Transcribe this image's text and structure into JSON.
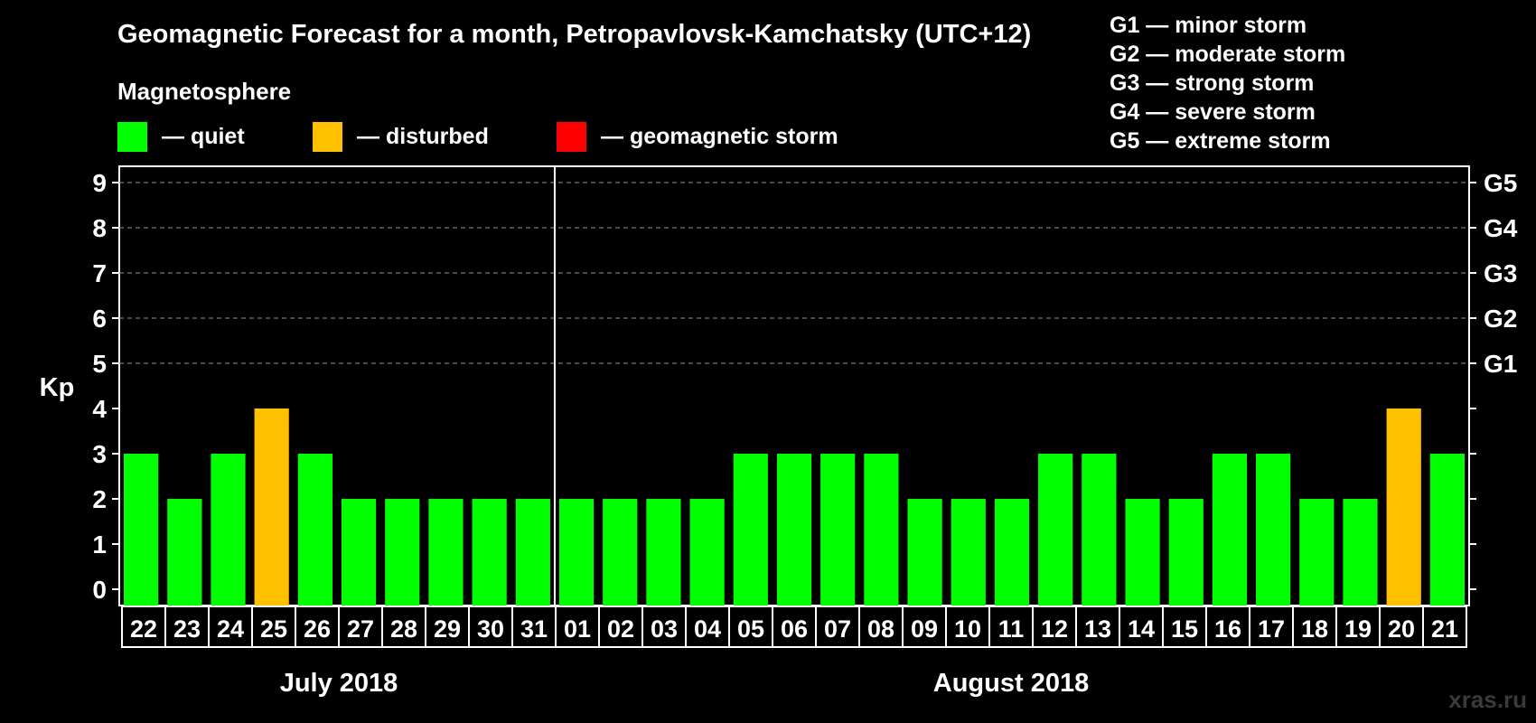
{
  "title": "Geomagnetic Forecast for a month, Petropavlovsk-Kamchatsky (UTC+12)",
  "legend": {
    "title": "Magnetosphere",
    "items": [
      {
        "label": "— quiet",
        "color": "#00ff00"
      },
      {
        "label": "— disturbed",
        "color": "#ffc000"
      },
      {
        "label": "— geomagnetic storm",
        "color": "#ff0000"
      }
    ]
  },
  "storm_legend": [
    "G1 — minor storm",
    "G2 — moderate storm",
    "G3 — strong storm",
    "G4 — severe storm",
    "G5 — extreme storm"
  ],
  "watermark": "xras.ru",
  "chart_data": {
    "type": "bar",
    "ylabel": "Kp",
    "ylim": [
      0,
      9
    ],
    "yticks": [
      0,
      1,
      2,
      3,
      4,
      5,
      6,
      7,
      8,
      9
    ],
    "right_axis_labels": [
      {
        "kp": 5,
        "label": "G1"
      },
      {
        "kp": 6,
        "label": "G2"
      },
      {
        "kp": 7,
        "label": "G3"
      },
      {
        "kp": 8,
        "label": "G4"
      },
      {
        "kp": 9,
        "label": "G5"
      }
    ],
    "grid": "dashed horizontal at Kp 5-9",
    "categories": [
      "22",
      "23",
      "24",
      "25",
      "26",
      "27",
      "28",
      "29",
      "30",
      "31",
      "01",
      "02",
      "03",
      "04",
      "05",
      "06",
      "07",
      "08",
      "09",
      "10",
      "11",
      "12",
      "13",
      "14",
      "15",
      "16",
      "17",
      "18",
      "19",
      "20",
      "21"
    ],
    "values": [
      3,
      2,
      3,
      4,
      3,
      2,
      2,
      2,
      2,
      2,
      2,
      2,
      2,
      2,
      3,
      3,
      3,
      3,
      2,
      2,
      2,
      3,
      3,
      2,
      2,
      3,
      3,
      2,
      2,
      4,
      3
    ],
    "colors": {
      "quiet": "#00ff00",
      "disturbed": "#ffc000",
      "storm": "#ff0000"
    },
    "month_groups": [
      {
        "label": "July 2018",
        "count": 10
      },
      {
        "label": "August 2018",
        "count": 21
      }
    ]
  }
}
